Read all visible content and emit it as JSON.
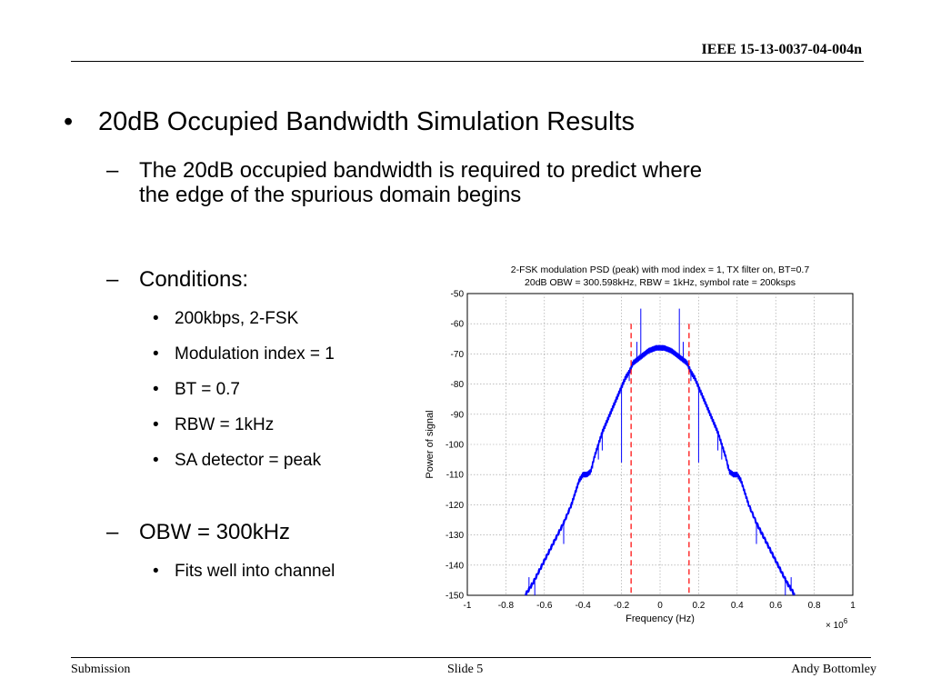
{
  "header": {
    "doc_id": "IEEE 15-13-0037-04-004n"
  },
  "slide": {
    "bullet1": "20dB Occupied Bandwidth Simulation Results",
    "dash1": "The 20dB occupied bandwidth is required to predict where the edge of the spurious domain begins",
    "dash1_line1": "The 20dB occupied bandwidth is required to predict where",
    "dash1_line2": "the edge of the spurious domain begins",
    "conditions_label": "Conditions:",
    "conditions": [
      "200kbps, 2-FSK",
      "Modulation index = 1",
      "BT = 0.7",
      "RBW = 1kHz",
      "SA detector = peak"
    ],
    "obw_label": "OBW = 300kHz",
    "obw_items": [
      "Fits well into channel"
    ],
    "bullet_char": "•",
    "dash_char": "–"
  },
  "footer": {
    "left": "Submission",
    "center": "Slide 5",
    "right": "Andy Bottomley"
  },
  "chart_data": {
    "type": "line",
    "title": "2-FSK modulation PSD (peak) with mod index = 1, TX filter on, BT=0.7",
    "subtitle": "20dB OBW = 300.598kHz, RBW = 1kHz, symbol rate = 200ksps",
    "xlabel": "Frequency (Hz)",
    "ylabel": "Power of signal",
    "x_multiplier": "× 10^6",
    "xlim": [
      -1,
      1
    ],
    "ylim": [
      -150,
      -50
    ],
    "xticks": [
      -1,
      -0.8,
      -0.6,
      -0.4,
      -0.2,
      0,
      0.2,
      0.4,
      0.6,
      0.8,
      1
    ],
    "xtick_labels": [
      "-1",
      "-0.8",
      "-0.6",
      "-0.4",
      "-0.2",
      "0",
      "0.2",
      "0.4",
      "0.6",
      "0.8",
      "1"
    ],
    "yticks": [
      -150,
      -140,
      -130,
      -120,
      -110,
      -100,
      -90,
      -80,
      -70,
      -60,
      -50
    ],
    "ytick_labels": [
      "-150",
      "-140",
      "-130",
      "-120",
      "-110",
      "-100",
      "-90",
      "-80",
      "-70",
      "-60",
      "-50"
    ],
    "grid": true,
    "series": [
      {
        "color": "#0000ff",
        "x": [
          -0.7,
          -0.66,
          -0.62,
          -0.58,
          -0.54,
          -0.5,
          -0.46,
          -0.44,
          -0.42,
          -0.4,
          -0.38,
          -0.36,
          -0.34,
          -0.32,
          -0.3,
          -0.28,
          -0.26,
          -0.24,
          -0.22,
          -0.2,
          -0.18,
          -0.16,
          -0.14,
          -0.12,
          -0.1,
          -0.08,
          -0.06,
          -0.04,
          -0.02,
          0,
          0.02,
          0.04,
          0.06,
          0.08,
          0.1,
          0.12,
          0.14,
          0.16,
          0.18,
          0.2,
          0.22,
          0.24,
          0.26,
          0.28,
          0.3,
          0.32,
          0.34,
          0.36,
          0.38,
          0.4,
          0.42,
          0.44,
          0.46,
          0.5,
          0.54,
          0.58,
          0.62,
          0.66,
          0.7
        ],
        "y": [
          -150,
          -146,
          -141,
          -136,
          -131,
          -126,
          -120,
          -116,
          -112,
          -110,
          -110,
          -109,
          -104,
          -100,
          -96,
          -93,
          -90,
          -87,
          -84,
          -81,
          -78,
          -76,
          -73,
          -72,
          -71,
          -70,
          -69,
          -68.5,
          -68,
          -68,
          -68,
          -68.5,
          -69,
          -70,
          -71,
          -72,
          -73,
          -76,
          -78,
          -81,
          -84,
          -87,
          -90,
          -93,
          -96,
          -100,
          -104,
          -109,
          -110,
          -110,
          -112,
          -116,
          -120,
          -126,
          -131,
          -136,
          -141,
          -146,
          -150
        ]
      }
    ],
    "spurs": [
      {
        "x": -0.68,
        "y": -144
      },
      {
        "x": -0.65,
        "y": -150
      },
      {
        "x": -0.5,
        "y": -133
      },
      {
        "x": -0.35,
        "y": -108
      },
      {
        "x": -0.32,
        "y": -105
      },
      {
        "x": -0.3,
        "y": -102
      },
      {
        "x": -0.2,
        "y": -106
      },
      {
        "x": -0.16,
        "y": -79
      },
      {
        "x": -0.12,
        "y": -66
      },
      {
        "x": -0.1,
        "y": -55
      },
      {
        "x": 0.1,
        "y": -55
      },
      {
        "x": 0.12,
        "y": -66
      },
      {
        "x": 0.16,
        "y": -79
      },
      {
        "x": 0.2,
        "y": -106
      },
      {
        "x": 0.3,
        "y": -102
      },
      {
        "x": 0.32,
        "y": -105
      },
      {
        "x": 0.35,
        "y": -108
      },
      {
        "x": 0.5,
        "y": -133
      },
      {
        "x": 0.65,
        "y": -150
      },
      {
        "x": 0.68,
        "y": -144
      }
    ],
    "obw_markers": {
      "color": "#ff0000",
      "x": [
        -0.1503,
        0.1503
      ],
      "y_top": -60,
      "style": "dashed"
    }
  }
}
